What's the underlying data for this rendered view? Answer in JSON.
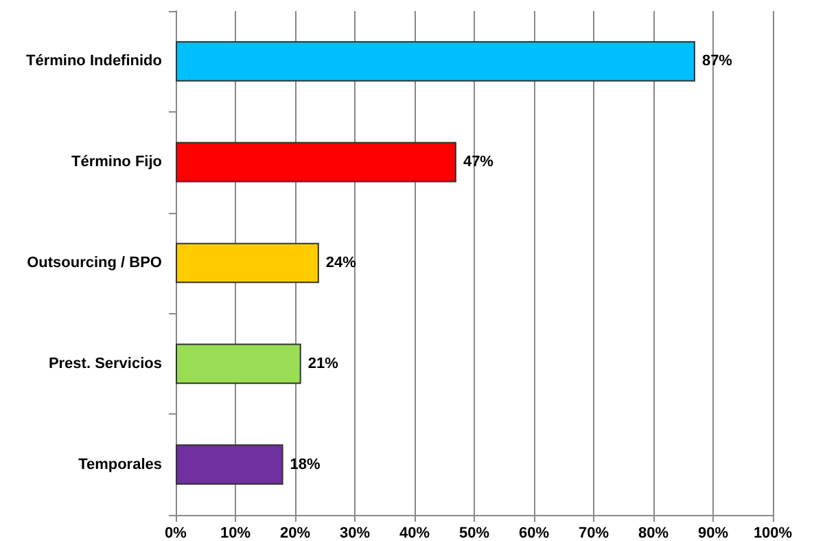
{
  "chart_data": {
    "type": "bar",
    "orientation": "horizontal",
    "categories": [
      "Término Indefinido",
      "Término Fijo",
      "Outsourcing / BPO",
      "Prest. Servicios",
      "Temporales"
    ],
    "values": [
      87,
      47,
      24,
      21,
      18
    ],
    "colors": [
      "#00bfff",
      "#ff0000",
      "#ffcc00",
      "#99dd55",
      "#7030a0"
    ],
    "value_labels": [
      "87%",
      "47%",
      "24%",
      "21%",
      "18%"
    ],
    "xlim": [
      0,
      100
    ],
    "xticks": [
      {
        "value": 0,
        "label": "0%"
      },
      {
        "value": 10,
        "label": "10%"
      },
      {
        "value": 20,
        "label": "20%"
      },
      {
        "value": 30,
        "label": "30%"
      },
      {
        "value": 40,
        "label": "40%"
      },
      {
        "value": 50,
        "label": "50%"
      },
      {
        "value": 60,
        "label": "60%"
      },
      {
        "value": 70,
        "label": "70%"
      },
      {
        "value": 80,
        "label": "80%"
      },
      {
        "value": 90,
        "label": "90%"
      },
      {
        "value": 100,
        "label": "100%"
      }
    ],
    "grid": "x"
  }
}
